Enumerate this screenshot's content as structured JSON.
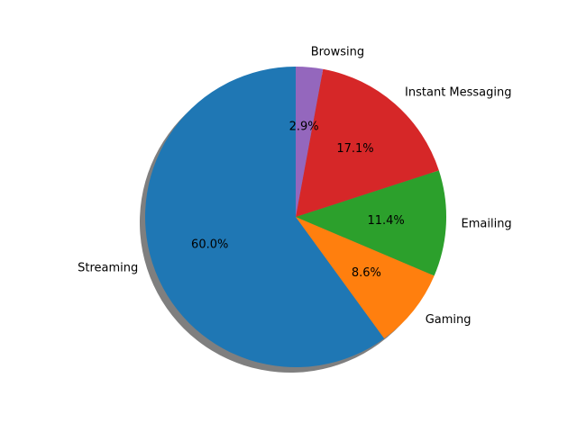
{
  "chart_data": {
    "type": "pie",
    "title": "",
    "start_angle_deg": 90,
    "direction": "counterclockwise",
    "shadow": true,
    "slices": [
      {
        "label": "Streaming",
        "value": 60.0,
        "pct_label": "60.0%",
        "color": "#1f77b4"
      },
      {
        "label": "Gaming",
        "value": 8.6,
        "pct_label": "8.6%",
        "color": "#ff7f0e"
      },
      {
        "label": "Emailing",
        "value": 11.4,
        "pct_label": "11.4%",
        "color": "#2ca02c"
      },
      {
        "label": "Instant Messaging",
        "value": 17.1,
        "pct_label": "17.1%",
        "color": "#d62728"
      },
      {
        "label": "Browsing",
        "value": 2.9,
        "pct_label": "2.9%",
        "color": "#9467bd"
      }
    ]
  }
}
